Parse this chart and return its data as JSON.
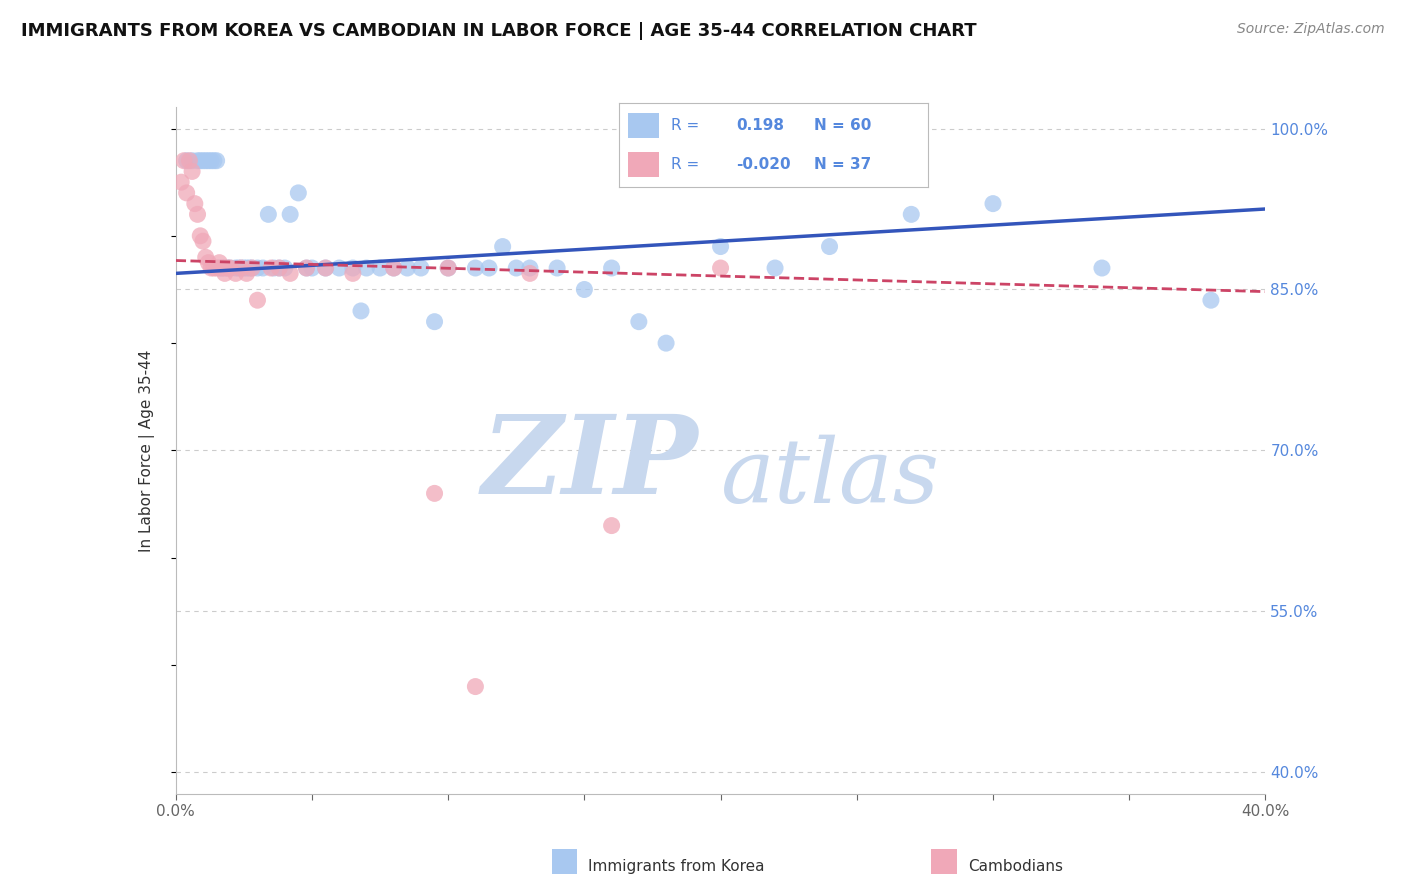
{
  "title": "IMMIGRANTS FROM KOREA VS CAMBODIAN IN LABOR FORCE | AGE 35-44 CORRELATION CHART",
  "source": "Source: ZipAtlas.com",
  "ylabel": "In Labor Force | Age 35-44",
  "xlim": [
    0.0,
    0.4
  ],
  "ylim": [
    0.38,
    1.02
  ],
  "xticks": [
    0.0,
    0.05,
    0.1,
    0.15,
    0.2,
    0.25,
    0.3,
    0.35,
    0.4
  ],
  "yticks_right": [
    0.4,
    0.55,
    0.7,
    0.85,
    1.0
  ],
  "yticklabels_right": [
    "40.0%",
    "55.0%",
    "70.0%",
    "85.0%",
    "100.0%"
  ],
  "korea_R": 0.198,
  "korea_N": 60,
  "cambodian_R": -0.02,
  "cambodian_N": 37,
  "korea_color": "#a8c8f0",
  "cambodian_color": "#f0a8b8",
  "korea_line_color": "#3355bb",
  "cambodian_line_color": "#cc4466",
  "korea_x": [
    0.004,
    0.006,
    0.008,
    0.009,
    0.01,
    0.011,
    0.012,
    0.013,
    0.014,
    0.015,
    0.016,
    0.017,
    0.018,
    0.019,
    0.02,
    0.022,
    0.023,
    0.024,
    0.025,
    0.026,
    0.027,
    0.028,
    0.03,
    0.032,
    0.034,
    0.036,
    0.038,
    0.04,
    0.042,
    0.045,
    0.048,
    0.05,
    0.055,
    0.06,
    0.065,
    0.068,
    0.07,
    0.075,
    0.08,
    0.085,
    0.09,
    0.095,
    0.1,
    0.11,
    0.115,
    0.12,
    0.125,
    0.13,
    0.14,
    0.15,
    0.16,
    0.17,
    0.18,
    0.2,
    0.22,
    0.24,
    0.27,
    0.3,
    0.34,
    0.38
  ],
  "korea_y": [
    0.97,
    0.97,
    0.97,
    0.97,
    0.97,
    0.97,
    0.97,
    0.97,
    0.97,
    0.97,
    0.87,
    0.87,
    0.87,
    0.87,
    0.87,
    0.87,
    0.87,
    0.87,
    0.87,
    0.87,
    0.87,
    0.87,
    0.87,
    0.87,
    0.92,
    0.87,
    0.87,
    0.87,
    0.92,
    0.94,
    0.87,
    0.87,
    0.87,
    0.87,
    0.87,
    0.83,
    0.87,
    0.87,
    0.87,
    0.87,
    0.87,
    0.82,
    0.87,
    0.87,
    0.87,
    0.89,
    0.87,
    0.87,
    0.87,
    0.85,
    0.87,
    0.82,
    0.8,
    0.89,
    0.87,
    0.89,
    0.92,
    0.93,
    0.87,
    0.84
  ],
  "cambodian_x": [
    0.002,
    0.003,
    0.004,
    0.005,
    0.006,
    0.007,
    0.008,
    0.009,
    0.01,
    0.011,
    0.012,
    0.013,
    0.014,
    0.015,
    0.016,
    0.017,
    0.018,
    0.019,
    0.02,
    0.022,
    0.024,
    0.026,
    0.028,
    0.03,
    0.035,
    0.038,
    0.042,
    0.048,
    0.055,
    0.065,
    0.08,
    0.1,
    0.13,
    0.16,
    0.2,
    0.095,
    0.11
  ],
  "cambodian_y": [
    0.95,
    0.97,
    0.94,
    0.97,
    0.96,
    0.93,
    0.92,
    0.9,
    0.895,
    0.88,
    0.875,
    0.87,
    0.87,
    0.87,
    0.875,
    0.87,
    0.865,
    0.87,
    0.87,
    0.865,
    0.87,
    0.865,
    0.87,
    0.84,
    0.87,
    0.87,
    0.865,
    0.87,
    0.87,
    0.865,
    0.87,
    0.87,
    0.865,
    0.63,
    0.87,
    0.66,
    0.48
  ],
  "background_color": "#ffffff",
  "grid_color": "#cccccc",
  "watermark_top": "ZIP",
  "watermark_bot": "atlas",
  "watermark_color": "#c8d8ee"
}
